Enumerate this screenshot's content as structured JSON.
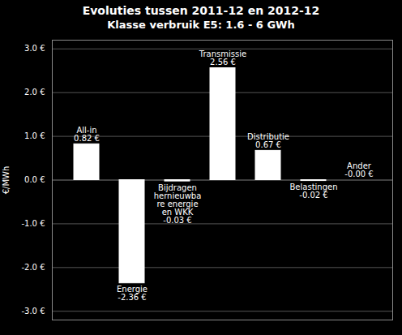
{
  "chart_data": {
    "type": "bar",
    "title": "Evoluties tussen 2011-12 en 2012-12",
    "subtitle": "Klasse verbruik E5: 1.6 - 6 GWh",
    "ylabel": "€/MWh",
    "categories": [
      null,
      null,
      null,
      null,
      null,
      null,
      null
    ],
    "values": [
      0.82,
      -2.36,
      -0.03,
      2.56,
      0.67,
      -0.02,
      -0.0
    ],
    "annotations": [
      "All-in\n0.82 €",
      "Energie\n-2.36 €",
      "Bijdragen\nhernieuwba\nre energie\nen WKK\n-0.03 €",
      "Transmissie\n2.56 €",
      "Distributie\n0.67 €",
      "Belastingen\n-0.02 €",
      "Ander\n-0.00 €"
    ],
    "color": "#ffffff",
    "ylim": [
      -3.2,
      3.2
    ],
    "yticks": [
      {
        "value": -3.0,
        "label": "-3.0 €"
      },
      {
        "value": -2.0,
        "label": "-2.0 €"
      },
      {
        "value": -1.0,
        "label": "-1.0 €"
      },
      {
        "value": 0.0,
        "label": "0.0 €"
      },
      {
        "value": 1.0,
        "label": "1.0 €"
      },
      {
        "value": 2.0,
        "label": "2.0 €"
      },
      {
        "value": 3.0,
        "label": "3.0 €"
      }
    ],
    "grid": true
  }
}
